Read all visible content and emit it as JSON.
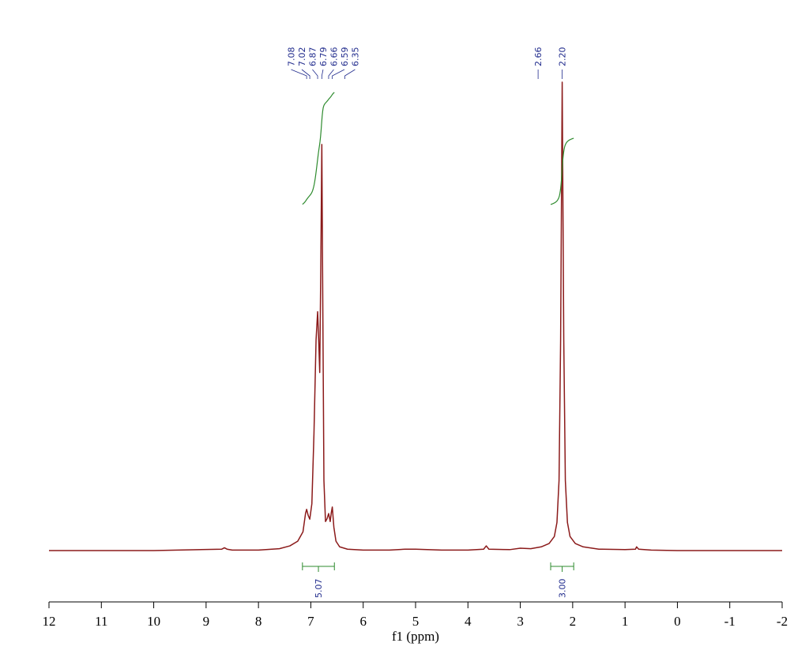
{
  "chart_data": {
    "type": "line",
    "x": [
      12,
      10,
      8.7,
      8.65,
      8.6,
      8.5,
      8,
      7.6,
      7.4,
      7.25,
      7.15,
      7.1,
      7.08,
      7.05,
      7.02,
      6.98,
      6.94,
      6.9,
      6.87,
      6.85,
      6.83,
      6.81,
      6.79,
      6.77,
      6.75,
      6.72,
      6.69,
      6.66,
      6.63,
      6.61,
      6.59,
      6.56,
      6.52,
      6.45,
      6.3,
      6,
      5.5,
      5.2,
      5,
      4.5,
      4,
      3.7,
      3.65,
      3.6,
      3.2,
      3,
      2.8,
      2.6,
      2.45,
      2.35,
      2.3,
      2.26,
      2.23,
      2.2,
      2.17,
      2.14,
      2.1,
      2.05,
      1.95,
      1.8,
      1.5,
      1,
      0.8,
      0.78,
      0.74,
      0.5,
      0,
      -2
    ],
    "values": [
      0,
      0,
      0.3,
      0.6,
      0.3,
      0.1,
      0.1,
      0.4,
      1,
      2,
      4,
      8,
      8.8,
      7.5,
      6.7,
      10,
      25,
      45,
      51,
      45,
      38,
      60,
      86.7,
      50,
      15,
      6.2,
      6.8,
      7.9,
      6.2,
      8,
      9.3,
      5,
      2,
      0.8,
      0.3,
      0.1,
      0.1,
      0.3,
      0.3,
      0.1,
      0.1,
      0.3,
      1,
      0.3,
      0.2,
      0.5,
      0.4,
      0.8,
      1.5,
      3,
      6,
      15,
      45,
      100,
      45,
      15,
      6,
      3,
      1.5,
      0.8,
      0.3,
      0.2,
      0.3,
      0.8,
      0.3,
      0.1,
      0,
      0
    ],
    "color": "#8b1a1a",
    "xlim": [
      12,
      -2
    ],
    "ylim": [
      0,
      100
    ],
    "xticks": [
      12,
      11,
      10,
      9,
      8,
      7,
      6,
      5,
      4,
      3,
      2,
      1,
      0,
      -1,
      -2
    ],
    "xlabel": "f1 (ppm)",
    "peaks": {
      "values": [
        7.08,
        7.02,
        6.87,
        6.79,
        6.66,
        6.59,
        6.35,
        2.66,
        2.2
      ],
      "value_labels": [
        "7.08",
        "7.02",
        "6.87",
        "6.79",
        "6.66",
        "6.59",
        "6.35",
        "2.66",
        "2.20"
      ]
    },
    "integrals": {
      "ranges": [
        [
          7.16,
          6.55
        ],
        [
          2.42,
          1.98
        ]
      ],
      "values": [
        5.07,
        3
      ],
      "value_labels": [
        "5.07",
        "3.00"
      ],
      "color": "#2e8b2e"
    }
  }
}
